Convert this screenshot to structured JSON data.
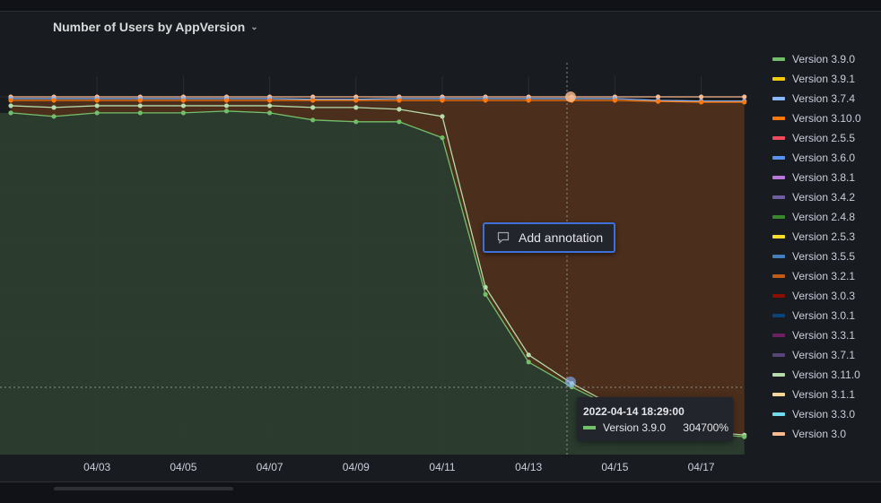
{
  "panel": {
    "title": "Number of Users by AppVersion"
  },
  "annotation_button": {
    "label": "Add annotation"
  },
  "tooltip": {
    "time": "2022-04-14 18:29:00",
    "series": "Version 3.9.0",
    "value": "304700%"
  },
  "legend": [
    {
      "name": "Version 3.9.0",
      "color": "#73bf69"
    },
    {
      "name": "Version 3.9.1",
      "color": "#f2cc0c"
    },
    {
      "name": "Version 3.7.4",
      "color": "#8ab8ff"
    },
    {
      "name": "Version 3.10.0",
      "color": "#ff780a"
    },
    {
      "name": "Version 2.5.5",
      "color": "#f2495c"
    },
    {
      "name": "Version 3.6.0",
      "color": "#5794f2"
    },
    {
      "name": "Version 3.8.1",
      "color": "#b877d9"
    },
    {
      "name": "Version 3.4.2",
      "color": "#705da0"
    },
    {
      "name": "Version 2.4.8",
      "color": "#37872d"
    },
    {
      "name": "Version 2.5.3",
      "color": "#fade2a"
    },
    {
      "name": "Version 3.5.5",
      "color": "#447ebc"
    },
    {
      "name": "Version 3.2.1",
      "color": "#c15c17"
    },
    {
      "name": "Version 3.0.3",
      "color": "#890f02"
    },
    {
      "name": "Version 3.0.1",
      "color": "#0a437c"
    },
    {
      "name": "Version 3.3.1",
      "color": "#6d1f62"
    },
    {
      "name": "Version 3.7.1",
      "color": "#584477"
    },
    {
      "name": "Version 3.11.0",
      "color": "#b7dbab"
    },
    {
      "name": "Version 3.1.1",
      "color": "#f4d598"
    },
    {
      "name": "Version 3.3.0",
      "color": "#70dbed"
    },
    {
      "name": "Version 3.0",
      "color": "#f9ba8f"
    }
  ],
  "chart_data": {
    "type": "area",
    "xlabel": "",
    "ylabel": "",
    "x_ticks": [
      "04/03",
      "04/05",
      "04/07",
      "04/09",
      "04/11",
      "04/13",
      "04/15",
      "04/17"
    ],
    "x": [
      "04/01",
      "04/02",
      "04/03",
      "04/04",
      "04/05",
      "04/06",
      "04/07",
      "04/08",
      "04/09",
      "04/10",
      "04/11",
      "04/12",
      "04/13",
      "04/14",
      "04/15",
      "04/16",
      "04/17",
      "04/18"
    ],
    "ylim": [
      0,
      100
    ],
    "grid": true,
    "legend_position": "right",
    "series": [
      {
        "name": "Version 3.9.0",
        "color": "#73bf69",
        "fill": "#2c3e30",
        "values": [
          96,
          95,
          96,
          96,
          96,
          96.5,
          96,
          94,
          93.5,
          93.5,
          89,
          45,
          26,
          19,
          13,
          8,
          6,
          5
        ]
      },
      {
        "name": "Version 3.11.0",
        "color": "#b7dbab",
        "fill": null,
        "values": [
          98,
          97.5,
          98,
          98,
          98,
          98,
          98,
          97.5,
          97.5,
          97,
          95,
          47,
          28,
          20,
          13.5,
          8.5,
          6.5,
          5.5
        ]
      },
      {
        "name": "Version 3.10.0",
        "color": "#ff780a",
        "fill": "#4f2f1c",
        "values": [
          99.5,
          99.5,
          99.5,
          99.5,
          99.5,
          99.5,
          99.5,
          99.5,
          99.5,
          99.5,
          99.5,
          99.5,
          99.5,
          99.5,
          99.5,
          99.2,
          99,
          99
        ]
      },
      {
        "name": "Version 3.7.4",
        "color": "#8ab8ff",
        "fill": null,
        "values": [
          100,
          100,
          100,
          100,
          100,
          100,
          100,
          99.8,
          99.8,
          100,
          100,
          100,
          100,
          100,
          100,
          99.5,
          99.3,
          99.3
        ]
      },
      {
        "name": "Version 3.0",
        "color": "#f9ba8f",
        "fill": null,
        "values": [
          100.5,
          100.5,
          100.5,
          100.5,
          100.5,
          100.5,
          100.5,
          100.5,
          100.5,
          100.5,
          100.5,
          100.5,
          100.5,
          100.5,
          100.5,
          100.5,
          100.5,
          100.5
        ]
      }
    ],
    "crosshair_x": "04/14 18:29"
  }
}
